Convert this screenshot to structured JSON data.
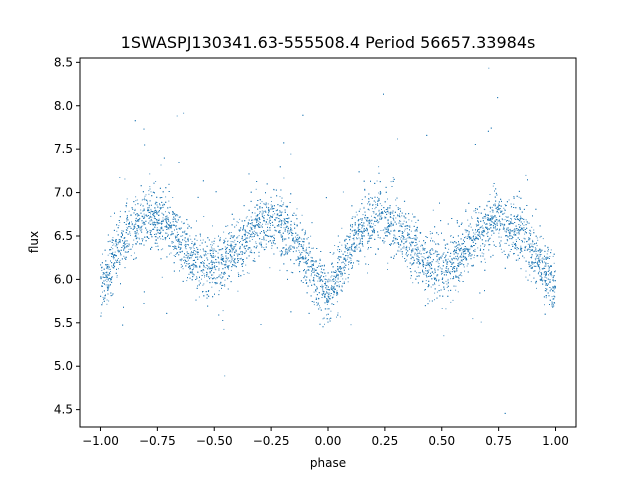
{
  "chart_data": {
    "type": "scatter",
    "title": "1SWASPJ130341.63-555508.4 Period 56657.33984s",
    "xlabel": "phase",
    "ylabel": "flux",
    "xlim": [
      -1.09,
      1.09
    ],
    "ylim": [
      4.3,
      8.55
    ],
    "xticks": [
      -1.0,
      -0.75,
      -0.5,
      -0.25,
      0.0,
      0.25,
      0.5,
      0.75,
      1.0
    ],
    "xtick_labels": [
      "−1.00",
      "−0.75",
      "−0.50",
      "−0.25",
      "0.00",
      "0.25",
      "0.50",
      "0.75",
      "1.00"
    ],
    "yticks": [
      4.5,
      5.0,
      5.5,
      6.0,
      6.5,
      7.0,
      7.5,
      8.0,
      8.5
    ],
    "ytick_labels": [
      "4.5",
      "5.0",
      "5.5",
      "6.0",
      "6.5",
      "7.0",
      "7.5",
      "8.0",
      "8.5"
    ],
    "grid": false,
    "legend": "none",
    "marker_color": "#1f77b4",
    "series": [
      {
        "x": [
          -1.0,
          -0.95,
          -0.9,
          -0.85,
          -0.8,
          -0.75,
          -0.7,
          -0.65,
          -0.6,
          -0.55,
          -0.5,
          -0.45,
          -0.4,
          -0.35,
          -0.3,
          -0.25,
          -0.2,
          -0.15,
          -0.1,
          -0.05,
          0.0,
          0.05,
          0.1,
          0.15,
          0.2,
          0.25,
          0.3,
          0.35,
          0.4,
          0.45,
          0.5,
          0.55,
          0.6,
          0.65,
          0.7,
          0.75,
          0.8,
          0.85,
          0.9,
          0.95,
          1.0
        ],
        "y": [
          5.9,
          6.2,
          6.45,
          6.6,
          6.7,
          6.72,
          6.62,
          6.45,
          6.28,
          6.18,
          6.15,
          6.2,
          6.35,
          6.5,
          6.62,
          6.7,
          6.62,
          6.45,
          6.25,
          6.0,
          5.85,
          6.05,
          6.35,
          6.6,
          6.7,
          6.7,
          6.62,
          6.45,
          6.25,
          6.15,
          6.15,
          6.2,
          6.35,
          6.5,
          6.62,
          6.7,
          6.62,
          6.5,
          6.3,
          6.1,
          5.88
        ],
        "scatter_sd": 0.17
      }
    ]
  }
}
